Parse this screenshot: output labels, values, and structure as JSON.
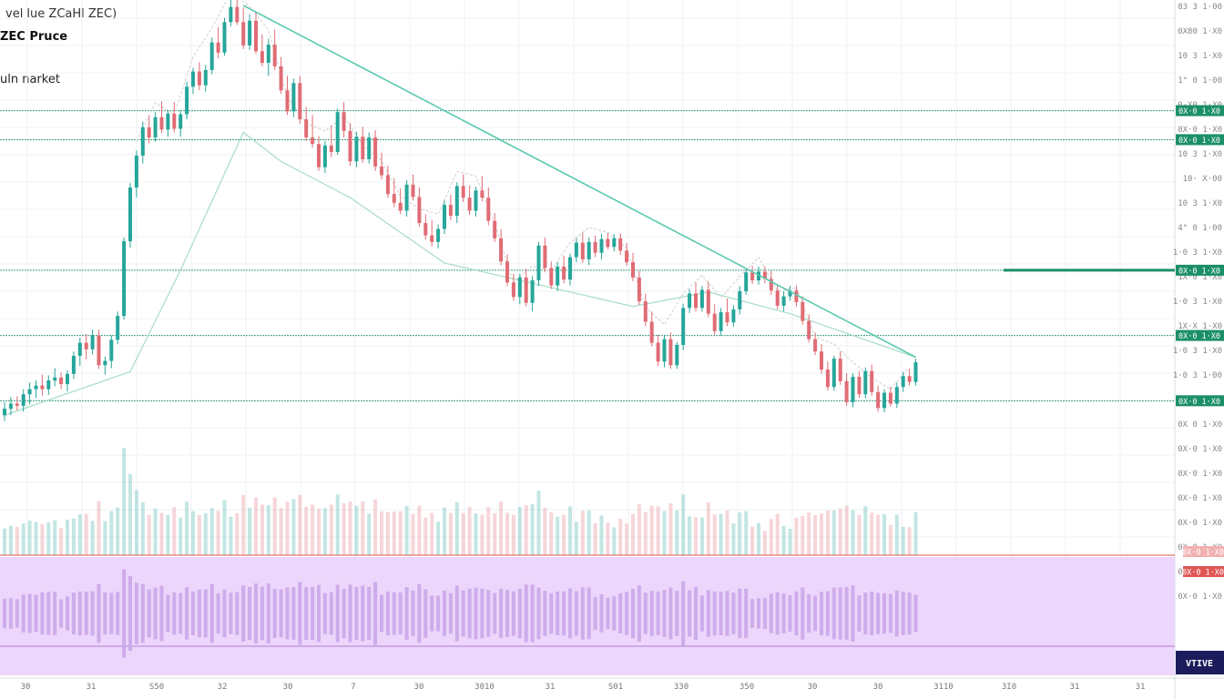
{
  "header": {
    "symbol_line": "vel lue ZCaHl ZEC)",
    "title": "ZEC Pruce",
    "subtitle": "uln narket"
  },
  "colors": {
    "up": "#26a69a",
    "down": "#e06c75",
    "level": "#1b8f6a",
    "trend": "#5cc9b0",
    "ma": "#a8dcc8",
    "osc_bg": "#ecd6fb",
    "osc_bar": "#c9a4e8",
    "price_tag": "#e05555",
    "osc_tag": "#1c1c5c"
  },
  "chart_data": {
    "type": "candlestick",
    "title": "ZEC Pruce",
    "ylim": [
      14,
      78
    ],
    "levels": [
      64,
      60,
      42,
      33,
      24
    ],
    "trendline": [
      [
        38,
        78.5
      ],
      [
        145,
        30
      ]
    ],
    "ma_series": [
      [
        0,
        22
      ],
      [
        20,
        28
      ],
      [
        28,
        42
      ],
      [
        38,
        61
      ],
      [
        44,
        57
      ],
      [
        55,
        52
      ],
      [
        70,
        43
      ],
      [
        100,
        37
      ],
      [
        112,
        39
      ],
      [
        125,
        36
      ],
      [
        145,
        30
      ]
    ],
    "candles": [
      [
        0,
        22,
        23.8,
        21.2,
        22.9
      ],
      [
        1,
        22.9,
        24.5,
        22,
        23.6
      ],
      [
        2,
        23.6,
        24.6,
        22.7,
        23.3
      ],
      [
        3,
        23.3,
        25.6,
        22.5,
        24.9
      ],
      [
        4,
        24.9,
        26.5,
        23.5,
        25.6
      ],
      [
        5,
        25.6,
        26.8,
        24.4,
        26.1
      ],
      [
        6,
        26.1,
        27.6,
        24.7,
        25.6
      ],
      [
        7,
        25.6,
        27.5,
        24.8,
        26.8
      ],
      [
        8,
        26.8,
        28.5,
        26,
        27.2
      ],
      [
        9,
        27.2,
        27.9,
        25.6,
        26.3
      ],
      [
        10,
        26.3,
        28.2,
        25.3,
        27.7
      ],
      [
        11,
        27.7,
        30.8,
        27,
        30.2
      ],
      [
        12,
        30.2,
        32.7,
        28.8,
        32
      ],
      [
        13,
        32,
        33.2,
        29.7,
        31.1
      ],
      [
        14,
        31.1,
        33.8,
        30.4,
        33
      ],
      [
        15,
        33,
        33.8,
        28.4,
        28.9
      ],
      [
        16,
        28.9,
        30.1,
        27.6,
        29.5
      ],
      [
        17,
        29.5,
        33,
        28.5,
        32.4
      ],
      [
        18,
        32.4,
        36.3,
        31.8,
        35.7
      ],
      [
        19,
        35.7,
        46.5,
        35.2,
        46
      ],
      [
        20,
        46,
        54,
        45.1,
        53.4
      ],
      [
        21,
        53.4,
        58.5,
        52,
        57.8
      ],
      [
        22,
        57.8,
        62.5,
        56.7,
        61.7
      ],
      [
        23,
        61.7,
        63.3,
        59.5,
        60.3
      ],
      [
        24,
        60.3,
        63.8,
        59.7,
        63.1
      ],
      [
        25,
        63.1,
        65.3,
        60.9,
        61.4
      ],
      [
        26,
        61.4,
        64.1,
        60.4,
        63.6
      ],
      [
        27,
        63.6,
        65.2,
        61,
        61.5
      ],
      [
        28,
        61.5,
        64.1,
        60.4,
        63.5
      ],
      [
        29,
        63.5,
        68,
        62.8,
        67.3
      ],
      [
        30,
        67.3,
        69.9,
        66.3,
        69.4
      ],
      [
        31,
        69.4,
        70.7,
        66.8,
        67.5
      ],
      [
        32,
        67.5,
        70.3,
        66.6,
        69.6
      ],
      [
        33,
        69.6,
        74.1,
        69,
        73.4
      ],
      [
        34,
        73.4,
        75.5,
        71.2,
        72
      ],
      [
        35,
        72,
        76.8,
        71.6,
        76.2
      ],
      [
        36,
        76.2,
        79.5,
        75.6,
        78.3
      ],
      [
        37,
        78.3,
        79.7,
        75.8,
        76.2
      ],
      [
        38,
        76.2,
        78.2,
        72.5,
        73
      ],
      [
        39,
        73,
        77.3,
        72.4,
        76.4
      ],
      [
        40,
        76.4,
        77.5,
        71.8,
        72.2
      ],
      [
        41,
        72.2,
        74.5,
        70.1,
        70.6
      ],
      [
        42,
        70.6,
        73.9,
        68.8,
        73.1
      ],
      [
        43,
        73.1,
        75.2,
        69.6,
        70.1
      ],
      [
        44,
        70.1,
        71.4,
        66.3,
        66.8
      ],
      [
        45,
        66.8,
        68.8,
        63.4,
        63.9
      ],
      [
        46,
        63.9,
        68.4,
        63.1,
        67.8
      ],
      [
        47,
        67.8,
        68.8,
        62.2,
        62.8
      ],
      [
        48,
        62.8,
        64.5,
        59.8,
        60.3
      ],
      [
        49,
        60.3,
        63.4,
        58.9,
        59.4
      ],
      [
        50,
        59.4,
        60.5,
        55.7,
        56.2
      ],
      [
        51,
        56.2,
        59.8,
        55.4,
        59.2
      ],
      [
        52,
        59.2,
        62,
        57.6,
        58.3
      ],
      [
        53,
        58.3,
        64.3,
        57.9,
        63.8
      ],
      [
        54,
        63.8,
        65.2,
        60.3,
        61.2
      ],
      [
        55,
        61.2,
        62.3,
        56.4,
        57
      ],
      [
        56,
        57,
        61.1,
        56.2,
        60.4
      ],
      [
        57,
        60.4,
        61.8,
        56.8,
        57.3
      ],
      [
        58,
        57.3,
        61,
        56.7,
        60.3
      ],
      [
        59,
        60.3,
        61.3,
        55.7,
        56.3
      ],
      [
        60,
        56.3,
        58.2,
        54.5,
        55.1
      ],
      [
        61,
        55.1,
        56.4,
        52,
        52.5
      ],
      [
        62,
        52.5,
        54.7,
        50.7,
        51.3
      ],
      [
        63,
        51.3,
        53.3,
        49.7,
        50.2
      ],
      [
        64,
        50.2,
        54.4,
        49.4,
        53.8
      ],
      [
        65,
        53.8,
        55.2,
        51.6,
        52.1
      ],
      [
        66,
        52.1,
        53.4,
        48,
        48.5
      ],
      [
        67,
        48.5,
        49.7,
        46.2,
        46.8
      ],
      [
        68,
        46.8,
        48.9,
        45.3,
        45.9
      ],
      [
        69,
        45.9,
        48.3,
        45,
        47.7
      ],
      [
        70,
        47.7,
        51.6,
        47,
        51
      ],
      [
        71,
        51,
        52.4,
        48.9,
        49.5
      ],
      [
        72,
        49.5,
        54.1,
        48.5,
        53.6
      ],
      [
        73,
        53.6,
        55.2,
        51.4,
        52
      ],
      [
        74,
        52,
        53.7,
        49.6,
        50.2
      ],
      [
        75,
        50.2,
        53.5,
        49.4,
        53
      ],
      [
        76,
        53,
        55,
        51.5,
        52
      ],
      [
        77,
        52,
        53.4,
        48.2,
        48.8
      ],
      [
        78,
        48.8,
        49.9,
        45.9,
        46.4
      ],
      [
        79,
        46.4,
        47.7,
        42.7,
        43.2
      ],
      [
        80,
        43.2,
        44.2,
        39.8,
        40.3
      ],
      [
        81,
        40.3,
        41.5,
        37.8,
        38.3
      ],
      [
        82,
        38.3,
        41.5,
        37.3,
        41
      ],
      [
        83,
        41,
        42.2,
        37,
        37.5
      ],
      [
        84,
        37.5,
        41.2,
        36.3,
        40.6
      ],
      [
        85,
        40.6,
        45.9,
        39.8,
        45.4
      ],
      [
        86,
        45.4,
        46.5,
        41.7,
        42.3
      ],
      [
        87,
        42.3,
        43.2,
        39.4,
        39.9
      ],
      [
        88,
        39.9,
        43.1,
        39.1,
        42.5
      ],
      [
        89,
        42.5,
        44,
        40.2,
        40.7
      ],
      [
        90,
        40.7,
        44.3,
        39.9,
        43.8
      ],
      [
        91,
        43.8,
        46.4,
        43.1,
        45.8
      ],
      [
        92,
        45.8,
        47.2,
        43,
        43.5
      ],
      [
        93,
        43.5,
        46.5,
        42.7,
        45.9
      ],
      [
        94,
        45.9,
        46.8,
        43.8,
        44.4
      ],
      [
        95,
        44.4,
        47,
        43.5,
        46.3
      ],
      [
        96,
        46.3,
        47.1,
        44.9,
        45.2
      ],
      [
        97,
        45.2,
        47,
        44.6,
        46.4
      ],
      [
        98,
        46.4,
        47.1,
        44.1,
        44.7
      ],
      [
        99,
        44.7,
        45.8,
        42.6,
        43.1
      ],
      [
        100,
        43.1,
        44.4,
        40.5,
        41
      ],
      [
        101,
        41,
        41.9,
        37.2,
        37.7
      ],
      [
        102,
        37.7,
        38.8,
        34.3,
        34.9
      ],
      [
        103,
        34.9,
        36.3,
        31.5,
        32
      ],
      [
        104,
        32,
        33.1,
        28.8,
        29.4
      ],
      [
        105,
        29.4,
        33.1,
        28.6,
        32.5
      ],
      [
        106,
        32.5,
        33.4,
        28.4,
        28.9
      ],
      [
        107,
        28.9,
        32.1,
        28.4,
        31.7
      ],
      [
        108,
        31.7,
        37.4,
        31,
        36.8
      ],
      [
        109,
        36.8,
        39.4,
        36.1,
        38.8
      ],
      [
        110,
        38.8,
        40.3,
        36.3,
        36.8
      ],
      [
        111,
        36.8,
        39.8,
        36.3,
        39.3
      ],
      [
        112,
        39.3,
        40.4,
        35.5,
        36
      ],
      [
        113,
        36,
        37.3,
        33.1,
        33.6
      ],
      [
        114,
        33.6,
        36.8,
        33,
        36.2
      ],
      [
        115,
        36.2,
        38.1,
        34.3,
        34.8
      ],
      [
        116,
        34.8,
        37.2,
        34.2,
        36.6
      ],
      [
        117,
        36.6,
        39.8,
        35.9,
        39.1
      ],
      [
        118,
        39.1,
        42.2,
        38.6,
        41.7
      ],
      [
        119,
        41.7,
        42.6,
        40.1,
        40.6
      ],
      [
        120,
        40.6,
        42.5,
        40,
        41.8
      ],
      [
        121,
        41.8,
        42.5,
        40.2,
        40.8
      ],
      [
        122,
        40.8,
        41.9,
        38.6,
        39.2
      ],
      [
        123,
        39.2,
        40.1,
        36.6,
        37.1
      ],
      [
        124,
        37.1,
        39.1,
        36.3,
        38.4
      ],
      [
        125,
        38.4,
        39.8,
        37.8,
        39.2
      ],
      [
        126,
        39.2,
        39.9,
        37,
        37.6
      ],
      [
        127,
        37.6,
        38.4,
        34.5,
        35
      ],
      [
        128,
        35,
        35.9,
        32,
        32.5
      ],
      [
        129,
        32.5,
        33.4,
        30.3,
        30.8
      ],
      [
        130,
        30.8,
        31.8,
        27.7,
        28.3
      ],
      [
        131,
        28.3,
        29.4,
        25.4,
        25.9
      ],
      [
        132,
        25.9,
        30.2,
        25.4,
        29.8
      ],
      [
        133,
        29.8,
        30.8,
        26.2,
        26.7
      ],
      [
        134,
        26.7,
        27.8,
        23.3,
        23.8
      ],
      [
        135,
        23.8,
        27.8,
        23.1,
        27.3
      ],
      [
        136,
        27.3,
        28.1,
        24.4,
        24.9
      ],
      [
        137,
        24.9,
        28.6,
        24.3,
        28.1
      ],
      [
        138,
        28.1,
        29,
        24.7,
        25.2
      ],
      [
        139,
        25.2,
        26.1,
        22.5,
        23
      ],
      [
        140,
        23,
        25.6,
        22.4,
        25.1
      ],
      [
        141,
        25.1,
        25.9,
        23.2,
        23.6
      ],
      [
        142,
        23.6,
        26.5,
        23,
        25.9
      ],
      [
        143,
        25.9,
        28,
        25.2,
        27.4
      ],
      [
        144,
        27.4,
        28.4,
        26.1,
        26.6
      ],
      [
        145,
        26.6,
        29.8,
        26.1,
        29.3
      ]
    ]
  },
  "axis": {
    "price_labels": [
      "83 3 1·00",
      "0X80 1·X0",
      "10 3 1·X0",
      "1° 0 1·00",
      "0·X0 1·X0",
      "0X·0 1·X0",
      "10 3 1·X0",
      "10· X·00",
      "10 3 1·X0",
      "4° 0 1·00",
      "1·0 3 1·X0",
      "1X·0 1·X0",
      "1·0 3 1·X0",
      "1X·X 1·X0",
      "1·0 3 1·X0",
      "1·0 3 1·00",
      "0X·0 1·X0",
      "0X 0 1·X0",
      "0X·0 1·X0",
      "0X·0 1·X0",
      "0X·0 1·X0",
      "0X·0 1·X0",
      "0X·0 1·X0",
      "0X·0 1·X0",
      "0X·0 1·X0"
    ],
    "level_tags": [
      "0X·0 1·X0",
      "0X·0 1·X0",
      "0X·0 1·X0",
      "0X·0 1·X0",
      "0X·0 1·X0"
    ],
    "price_tags": [
      "0X·0 1·X0",
      "0X·0 1·X0"
    ],
    "osc_tag": "VTIVE",
    "time_labels": [
      "30",
      "31",
      "S50",
      "32",
      "30",
      "7",
      "30",
      "3010",
      "31",
      "S01",
      "330",
      "350",
      "30",
      "30",
      "3110",
      "3I0",
      "31",
      "31"
    ]
  }
}
